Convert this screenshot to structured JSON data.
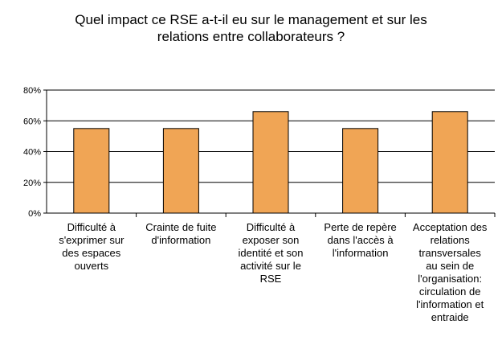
{
  "chart_data": {
    "type": "bar",
    "title_lines": [
      "Quel impact ce RSE a-t-il eu sur le management et sur les",
      "relations entre collaborateurs ?"
    ],
    "categories": [
      [
        "Difficulté à",
        "s'exprimer sur",
        "des espaces",
        "ouverts"
      ],
      [
        "Crainte de fuite",
        "d'information"
      ],
      [
        "Difficulté à",
        "exposer son",
        "identité et son",
        "activité sur le",
        "RSE"
      ],
      [
        "Perte de repère",
        "dans l'accès à",
        "l'information"
      ],
      [
        "Acceptation des",
        "relations",
        "transversales",
        "au sein de",
        "l'organisation:",
        "circulation de",
        "l'information et",
        "entraide"
      ]
    ],
    "values": [
      55,
      55,
      66,
      55,
      66
    ],
    "ylim": [
      0,
      80
    ],
    "y_ticks": [
      {
        "value": 0,
        "label": "0%"
      },
      {
        "value": 20,
        "label": "20%"
      },
      {
        "value": 40,
        "label": "40%"
      },
      {
        "value": 60,
        "label": "60%"
      },
      {
        "value": 80,
        "label": "80%"
      }
    ],
    "grid": true,
    "legend": "none",
    "bar_color": "#F0A555",
    "bar_edge_color": "#000000"
  }
}
